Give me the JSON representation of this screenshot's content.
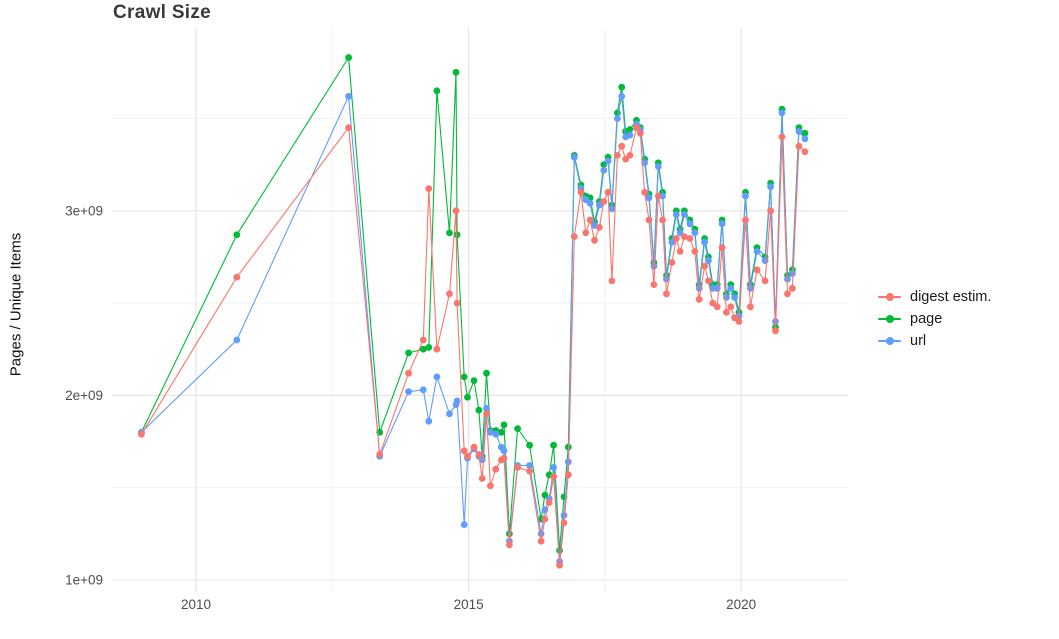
{
  "chart_data": {
    "type": "scatter-line",
    "title": "Crawl Size",
    "xlabel": "",
    "ylabel": "Pages / Unique Items",
    "x_unit": "year",
    "y_unit": "1e9 (billions)",
    "grid": true,
    "legend_position": "right",
    "xlim": [
      2008.46,
      2021.96
    ],
    "ylim_billions": [
      0.935,
      3.99
    ],
    "x_ticks": [
      {
        "value": 2010,
        "label": "2010"
      },
      {
        "value": 2015,
        "label": "2015"
      },
      {
        "value": 2020,
        "label": "2020"
      }
    ],
    "y_ticks": [
      {
        "value": 1,
        "label": "1e+09"
      },
      {
        "value": 2,
        "label": "2e+09"
      },
      {
        "value": 3,
        "label": "3e+09"
      }
    ],
    "x_minor": [
      2012.5,
      2017.5
    ],
    "y_minor": [
      1.5,
      2.5,
      3.5
    ],
    "colors": {
      "digest": "#F8766D",
      "page": "#00BA38",
      "url": "#619CFF",
      "grid_major": "#e4e4e4",
      "grid_minor": "#f2f2f2",
      "tick_label": "#4d4d4d",
      "title_text": "#3a3a3a",
      "axis_title_text": "#111111"
    },
    "draw_order": [
      1,
      2,
      0
    ],
    "series": [
      {
        "id": "digest",
        "name": "digest estim.",
        "color": "#F8766D",
        "points": [
          [
            2009.0,
            1.79
          ],
          [
            2010.75,
            2.64
          ],
          [
            2012.8,
            3.45
          ],
          [
            2013.37,
            1.68
          ],
          [
            2013.9,
            2.12
          ],
          [
            2014.17,
            2.3
          ],
          [
            2014.27,
            3.12
          ],
          [
            2014.42,
            2.25
          ],
          [
            2014.65,
            2.55
          ],
          [
            2014.77,
            3.0
          ],
          [
            2014.79,
            2.5
          ],
          [
            2014.92,
            1.7
          ],
          [
            2014.98,
            1.67
          ],
          [
            2015.1,
            1.72
          ],
          [
            2015.19,
            1.68
          ],
          [
            2015.25,
            1.55
          ],
          [
            2015.33,
            1.9
          ],
          [
            2015.4,
            1.51
          ],
          [
            2015.5,
            1.6
          ],
          [
            2015.6,
            1.65
          ],
          [
            2015.65,
            1.66
          ],
          [
            2015.75,
            1.19
          ],
          [
            2015.9,
            1.61
          ],
          [
            2016.12,
            1.59
          ],
          [
            2016.33,
            1.21
          ],
          [
            2016.4,
            1.33
          ],
          [
            2016.48,
            1.42
          ],
          [
            2016.56,
            1.56
          ],
          [
            2016.67,
            1.08
          ],
          [
            2016.75,
            1.31
          ],
          [
            2016.83,
            1.57
          ],
          [
            2016.94,
            2.86
          ],
          [
            2017.06,
            3.1
          ],
          [
            2017.15,
            2.88
          ],
          [
            2017.23,
            2.95
          ],
          [
            2017.31,
            2.84
          ],
          [
            2017.4,
            2.91
          ],
          [
            2017.48,
            3.05
          ],
          [
            2017.56,
            3.1
          ],
          [
            2017.63,
            2.62
          ],
          [
            2017.73,
            3.3
          ],
          [
            2017.81,
            3.35
          ],
          [
            2017.88,
            3.28
          ],
          [
            2017.96,
            3.3
          ],
          [
            2018.08,
            3.45
          ],
          [
            2018.15,
            3.42
          ],
          [
            2018.23,
            3.1
          ],
          [
            2018.31,
            2.95
          ],
          [
            2018.4,
            2.6
          ],
          [
            2018.48,
            3.08
          ],
          [
            2018.56,
            2.95
          ],
          [
            2018.63,
            2.55
          ],
          [
            2018.73,
            2.72
          ],
          [
            2018.81,
            2.85
          ],
          [
            2018.88,
            2.78
          ],
          [
            2018.96,
            2.86
          ],
          [
            2019.06,
            2.85
          ],
          [
            2019.15,
            2.78
          ],
          [
            2019.23,
            2.52
          ],
          [
            2019.33,
            2.7
          ],
          [
            2019.4,
            2.62
          ],
          [
            2019.48,
            2.5
          ],
          [
            2019.56,
            2.48
          ],
          [
            2019.65,
            2.8
          ],
          [
            2019.73,
            2.45
          ],
          [
            2019.81,
            2.48
          ],
          [
            2019.88,
            2.42
          ],
          [
            2019.96,
            2.4
          ],
          [
            2020.08,
            2.95
          ],
          [
            2020.17,
            2.48
          ],
          [
            2020.29,
            2.68
          ],
          [
            2020.44,
            2.62
          ],
          [
            2020.54,
            3.0
          ],
          [
            2020.63,
            2.35
          ],
          [
            2020.75,
            3.4
          ],
          [
            2020.85,
            2.55
          ],
          [
            2020.94,
            2.58
          ],
          [
            2021.06,
            3.35
          ],
          [
            2021.17,
            3.32
          ]
        ]
      },
      {
        "id": "page",
        "name": "page",
        "color": "#00BA38",
        "points": [
          [
            2009.0,
            1.8
          ],
          [
            2010.75,
            2.87
          ],
          [
            2012.8,
            3.83
          ],
          [
            2013.37,
            1.8
          ],
          [
            2013.9,
            2.23
          ],
          [
            2014.17,
            2.25
          ],
          [
            2014.27,
            2.26
          ],
          [
            2014.42,
            3.65
          ],
          [
            2014.65,
            2.88
          ],
          [
            2014.77,
            3.75
          ],
          [
            2014.79,
            2.87
          ],
          [
            2014.92,
            2.1
          ],
          [
            2014.98,
            1.99
          ],
          [
            2015.1,
            2.08
          ],
          [
            2015.19,
            1.92
          ],
          [
            2015.25,
            1.67
          ],
          [
            2015.33,
            2.12
          ],
          [
            2015.4,
            1.81
          ],
          [
            2015.5,
            1.81
          ],
          [
            2015.6,
            1.8
          ],
          [
            2015.65,
            1.84
          ],
          [
            2015.75,
            1.25
          ],
          [
            2015.9,
            1.82
          ],
          [
            2016.12,
            1.73
          ],
          [
            2016.33,
            1.33
          ],
          [
            2016.4,
            1.46
          ],
          [
            2016.48,
            1.57
          ],
          [
            2016.56,
            1.73
          ],
          [
            2016.67,
            1.16
          ],
          [
            2016.75,
            1.45
          ],
          [
            2016.83,
            1.72
          ],
          [
            2016.94,
            3.3
          ],
          [
            2017.06,
            3.14
          ],
          [
            2017.15,
            3.08
          ],
          [
            2017.23,
            3.07
          ],
          [
            2017.31,
            2.94
          ],
          [
            2017.4,
            3.05
          ],
          [
            2017.48,
            3.25
          ],
          [
            2017.56,
            3.29
          ],
          [
            2017.63,
            3.03
          ],
          [
            2017.73,
            3.53
          ],
          [
            2017.81,
            3.67
          ],
          [
            2017.88,
            3.43
          ],
          [
            2017.96,
            3.44
          ],
          [
            2018.08,
            3.49
          ],
          [
            2018.15,
            3.45
          ],
          [
            2018.23,
            3.28
          ],
          [
            2018.31,
            3.09
          ],
          [
            2018.4,
            2.72
          ],
          [
            2018.48,
            3.26
          ],
          [
            2018.56,
            3.1
          ],
          [
            2018.63,
            2.65
          ],
          [
            2018.73,
            2.85
          ],
          [
            2018.81,
            3.0
          ],
          [
            2018.88,
            2.9
          ],
          [
            2018.96,
            3.0
          ],
          [
            2019.06,
            2.95
          ],
          [
            2019.15,
            2.9
          ],
          [
            2019.23,
            2.6
          ],
          [
            2019.33,
            2.85
          ],
          [
            2019.4,
            2.75
          ],
          [
            2019.48,
            2.6
          ],
          [
            2019.56,
            2.6
          ],
          [
            2019.65,
            2.95
          ],
          [
            2019.73,
            2.55
          ],
          [
            2019.81,
            2.6
          ],
          [
            2019.88,
            2.55
          ],
          [
            2019.96,
            2.45
          ],
          [
            2020.08,
            3.1
          ],
          [
            2020.17,
            2.6
          ],
          [
            2020.29,
            2.8
          ],
          [
            2020.44,
            2.75
          ],
          [
            2020.54,
            3.15
          ],
          [
            2020.63,
            2.37
          ],
          [
            2020.75,
            3.55
          ],
          [
            2020.85,
            2.65
          ],
          [
            2020.94,
            2.68
          ],
          [
            2021.06,
            3.45
          ],
          [
            2021.17,
            3.42
          ]
        ]
      },
      {
        "id": "url",
        "name": "url",
        "color": "#619CFF",
        "points": [
          [
            2009.0,
            1.8
          ],
          [
            2010.75,
            2.3
          ],
          [
            2012.8,
            3.62
          ],
          [
            2013.37,
            1.67
          ],
          [
            2013.9,
            2.02
          ],
          [
            2014.17,
            2.03
          ],
          [
            2014.27,
            1.86
          ],
          [
            2014.42,
            2.1
          ],
          [
            2014.65,
            1.9
          ],
          [
            2014.77,
            1.95
          ],
          [
            2014.79,
            1.97
          ],
          [
            2014.92,
            1.3
          ],
          [
            2014.98,
            1.66
          ],
          [
            2015.1,
            1.71
          ],
          [
            2015.19,
            1.67
          ],
          [
            2015.25,
            1.65
          ],
          [
            2015.33,
            1.93
          ],
          [
            2015.4,
            1.8
          ],
          [
            2015.5,
            1.79
          ],
          [
            2015.6,
            1.72
          ],
          [
            2015.65,
            1.7
          ],
          [
            2015.75,
            1.21
          ],
          [
            2015.9,
            1.62
          ],
          [
            2016.12,
            1.62
          ],
          [
            2016.33,
            1.25
          ],
          [
            2016.4,
            1.38
          ],
          [
            2016.48,
            1.44
          ],
          [
            2016.56,
            1.61
          ],
          [
            2016.67,
            1.1
          ],
          [
            2016.75,
            1.35
          ],
          [
            2016.83,
            1.64
          ],
          [
            2016.94,
            3.29
          ],
          [
            2017.06,
            3.12
          ],
          [
            2017.15,
            3.06
          ],
          [
            2017.23,
            3.04
          ],
          [
            2017.31,
            2.92
          ],
          [
            2017.4,
            3.03
          ],
          [
            2017.48,
            3.22
          ],
          [
            2017.56,
            3.27
          ],
          [
            2017.63,
            3.01
          ],
          [
            2017.73,
            3.5
          ],
          [
            2017.81,
            3.62
          ],
          [
            2017.88,
            3.4
          ],
          [
            2017.96,
            3.41
          ],
          [
            2018.08,
            3.47
          ],
          [
            2018.15,
            3.44
          ],
          [
            2018.23,
            3.26
          ],
          [
            2018.31,
            3.07
          ],
          [
            2018.4,
            2.7
          ],
          [
            2018.48,
            3.24
          ],
          [
            2018.56,
            3.08
          ],
          [
            2018.63,
            2.63
          ],
          [
            2018.73,
            2.83
          ],
          [
            2018.81,
            2.98
          ],
          [
            2018.88,
            2.88
          ],
          [
            2018.96,
            2.98
          ],
          [
            2019.06,
            2.93
          ],
          [
            2019.15,
            2.88
          ],
          [
            2019.23,
            2.58
          ],
          [
            2019.33,
            2.83
          ],
          [
            2019.4,
            2.73
          ],
          [
            2019.48,
            2.58
          ],
          [
            2019.56,
            2.58
          ],
          [
            2019.65,
            2.93
          ],
          [
            2019.73,
            2.53
          ],
          [
            2019.81,
            2.58
          ],
          [
            2019.88,
            2.53
          ],
          [
            2019.96,
            2.43
          ],
          [
            2020.08,
            3.08
          ],
          [
            2020.17,
            2.58
          ],
          [
            2020.29,
            2.78
          ],
          [
            2020.44,
            2.73
          ],
          [
            2020.54,
            3.13
          ],
          [
            2020.63,
            2.4
          ],
          [
            2020.75,
            3.53
          ],
          [
            2020.85,
            2.63
          ],
          [
            2020.94,
            2.66
          ],
          [
            2021.06,
            3.43
          ],
          [
            2021.17,
            3.39
          ]
        ]
      }
    ]
  }
}
